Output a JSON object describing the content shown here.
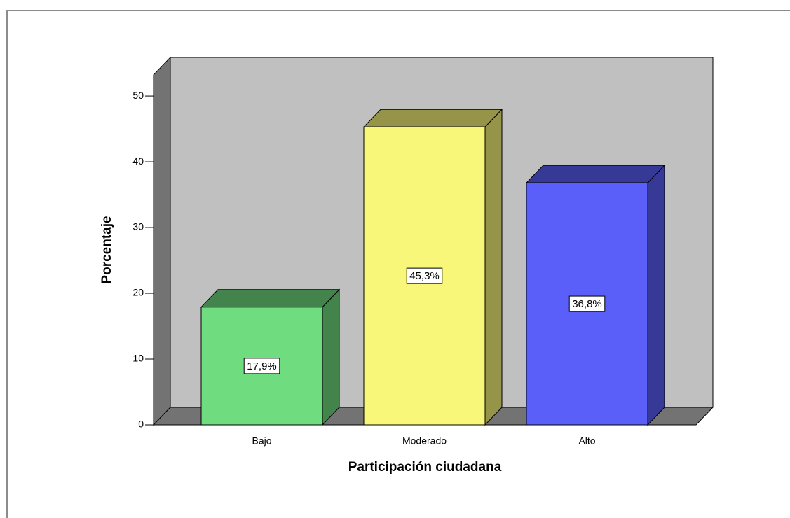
{
  "chart_data": {
    "type": "bar3d",
    "x_label": "Participación ciudadana",
    "y_label": "Porcentaje",
    "categories": [
      "Bajo",
      "Moderado",
      "Alto"
    ],
    "values": [
      17.9,
      45.3,
      36.8
    ],
    "value_labels": [
      "17,9%",
      "45,3%",
      "36,8%"
    ],
    "colors": [
      "#70dc80",
      "#f9f77a",
      "#5a5ff9"
    ],
    "ylim": [
      0,
      53.2
    ],
    "yticks": [
      0,
      10,
      20,
      30,
      40,
      50
    ],
    "wall_color": "#c0c0c0",
    "floor_color": "#737373"
  }
}
